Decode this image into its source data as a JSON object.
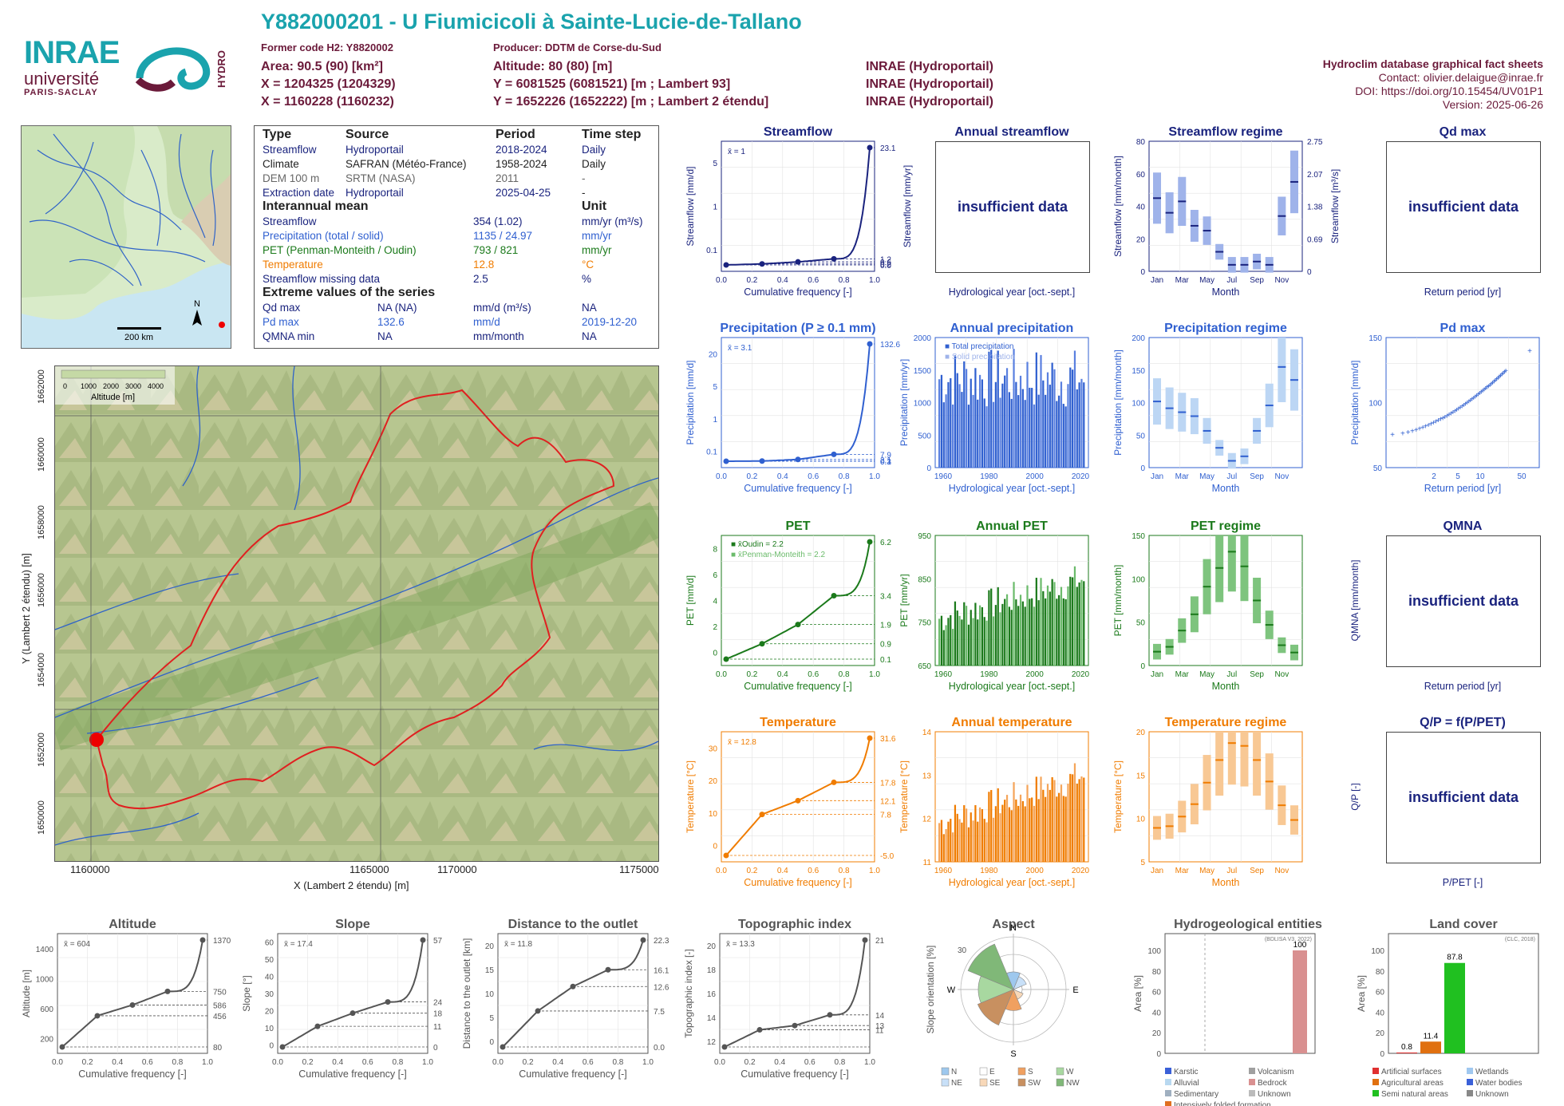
{
  "header": {
    "title": "Y882000201 - U Fiumicicoli à Sainte-Lucie-de-Tallano",
    "former_code": "Former code H2: Y8820002",
    "producer": "Producer: DDTM de Corse-du-Sud",
    "area": "Area: 90.5 (90) [km²]",
    "altitude": "Altitude: 80 (80) [m]",
    "x_l93": "X = 1204325 (1204329)",
    "y_l93": "Y = 6081525 (6081521) [m ; Lambert 93]",
    "x_l2e": "X = 1160228 (1160232)",
    "y_l2e": "Y = 1652226 (1652222) [m ; Lambert 2 étendu]",
    "src1": "INRAE (Hydroportail)",
    "src2": "INRAE (Hydroportail)",
    "src3": "INRAE (Hydroportail)",
    "db_title": "Hydroclim database graphical fact sheets",
    "contact": "Contact: olivier.delaigue@inrae.fr",
    "doi": "DOI: https://doi.org/10.15454/UV01P1",
    "version": "Version: 2025-06-26"
  },
  "logos": {
    "inrae": "INRAE",
    "universite": "université",
    "paris_saclay": "PARIS-SACLAY",
    "hydro": "HYDRO"
  },
  "minimap": {
    "scale": "200 km",
    "north": "N"
  },
  "info_table": {
    "headers": [
      "Type",
      "Source",
      "Period",
      "Time step"
    ],
    "rows": [
      [
        "Streamflow",
        "Hydroportail",
        "2018-2024",
        "Daily"
      ],
      [
        "Climate",
        "SAFRAN (Météo-France)",
        "1958-2024",
        "Daily"
      ],
      [
        "DEM 100 m",
        "SRTM (NASA)",
        "2011",
        "-"
      ],
      [
        "Extraction date",
        "Hydroportail",
        "2025-04-25",
        "-"
      ]
    ],
    "interannual_title": "Interannual mean",
    "unit_title": "Unit",
    "interannual": [
      [
        "Streamflow",
        "354 (1.02)",
        "mm/yr (m³/s)"
      ],
      [
        "Precipitation (total / solid)",
        "1135 / 24.97",
        "mm/yr"
      ],
      [
        "PET (Penman-Monteith / Oudin)",
        "793 / 821",
        "mm/yr"
      ],
      [
        "Temperature",
        "12.8",
        "°C"
      ],
      [
        "Streamflow missing data",
        "2.5",
        "%"
      ]
    ],
    "extreme_title": "Extreme values of the series",
    "extremes": [
      [
        "Qd max",
        "NA (NA)",
        "mm/d (m³/s)",
        "NA"
      ],
      [
        "Pd max",
        "132.6",
        "mm/d",
        "2019-12-20"
      ],
      [
        "QMNA min",
        "NA",
        "mm/month",
        "NA"
      ]
    ]
  },
  "map": {
    "xlabel": "X (Lambert 2 étendu) [m]",
    "ylabel": "Y (Lambert 2 étendu) [m]",
    "xticks": [
      "1160000",
      "1165000",
      "1170000",
      "1175000"
    ],
    "yticks": [
      "1662000",
      "1660000",
      "1658000",
      "1656000",
      "1654000",
      "1652000",
      "1650000"
    ],
    "legend_ticks": [
      "0",
      "1000",
      "2000",
      "3000",
      "4000"
    ],
    "legend_title": "Altitude [m]"
  },
  "panels": {
    "streamflow": {
      "title": "Streamflow",
      "ylabel": "Streamflow [mm/d]",
      "ylabel2": "Streamflow [mm/yr]",
      "xlabel": "Cumulative frequency [-]",
      "mean": "x̄ = 1",
      "yticks": [
        "0.1",
        "1",
        "5"
      ],
      "right_ticks": [
        "23.1",
        "1.2",
        "0.6",
        "0.2",
        "0.0"
      ],
      "xticks": [
        "0.0",
        "0.2",
        "0.4",
        "0.6",
        "0.8",
        "1.0"
      ]
    },
    "annual_streamflow": {
      "title": "Annual streamflow",
      "message": "insufficient data",
      "xlabel": "Hydrological year [oct.-sept.]"
    },
    "streamflow_regime": {
      "title": "Streamflow regime",
      "ylabel": "Streamflow [mm/month]",
      "ylabel2": "Streamflow [m³/s]",
      "xlabel": "Month",
      "yticks": [
        "0",
        "20",
        "40",
        "60",
        "80"
      ],
      "right_ticks": [
        "0",
        "0.69",
        "1.38",
        "2.07",
        "2.75"
      ],
      "months": [
        "Jan",
        "Mar",
        "May",
        "Jul",
        "Sep",
        "Nov"
      ]
    },
    "qd_max": {
      "title": "Qd max",
      "message": "insufficient data",
      "xlabel": "Return period [yr]"
    },
    "precipitation": {
      "title": "Precipitation (P ≥ 0.1 mm)",
      "ylabel": "Precipitation [mm/d]",
      "xlabel": "Cumulative frequency [-]",
      "mean": "x̄ = 3.1",
      "yticks": [
        "0.1",
        "1",
        "5",
        "20"
      ],
      "right_ticks": [
        "132.6",
        "7.9",
        "2.1",
        "0.3",
        "0.1"
      ],
      "xticks": [
        "0.0",
        "0.2",
        "0.4",
        "0.6",
        "0.8",
        "1.0"
      ]
    },
    "annual_precipitation": {
      "title": "Annual precipitation",
      "ylabel": "Precipitation [mm/yr]",
      "xlabel": "Hydrological year [oct.-sept.]",
      "legend": [
        "Total precipitation",
        "Solid precipitation"
      ],
      "yticks": [
        "0",
        "500",
        "1000",
        "1500",
        "2000"
      ],
      "xticks": [
        "1960",
        "1980",
        "2000",
        "2020"
      ]
    },
    "precipitation_regime": {
      "title": "Precipitation regime",
      "ylabel": "Precipitation [mm/month]",
      "xlabel": "Month",
      "yticks": [
        "0",
        "50",
        "100",
        "150",
        "200"
      ],
      "months": [
        "Jan",
        "Mar",
        "May",
        "Jul",
        "Sep",
        "Nov"
      ]
    },
    "pd_max": {
      "title": "Pd max",
      "ylabel": "Precipitation [mm/d]",
      "xlabel": "Return period [yr]",
      "yticks": [
        "50",
        "100",
        "150"
      ],
      "xticks": [
        "2",
        "5",
        "10",
        "50"
      ]
    },
    "pet": {
      "title": "PET",
      "ylabel": "PET [mm/d]",
      "xlabel": "Cumulative frequency [-]",
      "legend": [
        "x̄Oudin = 2.2",
        "x̄Penman-Monteith = 2.2"
      ],
      "yticks": [
        "0",
        "2",
        "4",
        "6",
        "8"
      ],
      "right_ticks": [
        "6.2",
        "3.4",
        "1.9",
        "0.9",
        "0.1"
      ],
      "xticks": [
        "0.0",
        "0.2",
        "0.4",
        "0.6",
        "0.8",
        "1.0"
      ]
    },
    "annual_pet": {
      "title": "Annual PET",
      "ylabel": "PET [mm/yr]",
      "xlabel": "Hydrological year [oct.-sept.]",
      "yticks": [
        "650",
        "750",
        "850",
        "950"
      ],
      "xticks": [
        "1960",
        "1980",
        "2000",
        "2020"
      ]
    },
    "pet_regime": {
      "title": "PET regime",
      "ylabel": "PET [mm/month]",
      "xlabel": "Month",
      "yticks": [
        "0",
        "50",
        "100",
        "150"
      ],
      "months": [
        "Jan",
        "Mar",
        "May",
        "Jul",
        "Sep",
        "Nov"
      ]
    },
    "qmna": {
      "title": "QMNA",
      "ylabel": "QMNA [mm/month]",
      "message": "insufficient data",
      "xlabel": "Return period [yr]"
    },
    "temperature": {
      "title": "Temperature",
      "ylabel": "Temperature [°C]",
      "xlabel": "Cumulative frequency [-]",
      "mean": "x̄ = 12.8",
      "yticks": [
        "0",
        "10",
        "20",
        "30"
      ],
      "right_ticks": [
        "31.6",
        "17.8",
        "12.1",
        "7.8",
        "-5.0"
      ],
      "xticks": [
        "0.0",
        "0.2",
        "0.4",
        "0.6",
        "0.8",
        "1.0"
      ]
    },
    "annual_temperature": {
      "title": "Annual temperature",
      "ylabel": "Temperature [°C]",
      "xlabel": "Hydrological year [oct.-sept.]",
      "yticks": [
        "11",
        "12",
        "13",
        "14"
      ],
      "xticks": [
        "1960",
        "1980",
        "2000",
        "2020"
      ]
    },
    "temperature_regime": {
      "title": "Temperature regime",
      "ylabel": "Temperature [°C]",
      "xlabel": "Month",
      "yticks": [
        "5",
        "10",
        "15",
        "20"
      ],
      "months": [
        "Jan",
        "Mar",
        "May",
        "Jul",
        "Sep",
        "Nov"
      ]
    },
    "qp": {
      "title": "Q/P = f(P/PET)",
      "ylabel": "Q/P [-]",
      "message": "insufficient data",
      "xlabel": "P/PET [-]"
    },
    "altitude": {
      "title": "Altitude",
      "ylabel": "Altitude [m]",
      "xlabel": "Cumulative frequency [-]",
      "mean": "x̄ = 604",
      "yticks": [
        "200",
        "600",
        "1000",
        "1400"
      ],
      "right_ticks": [
        "1370",
        "750",
        "586",
        "456",
        "80"
      ]
    },
    "slope": {
      "title": "Slope",
      "ylabel": "Slope [°]",
      "xlabel": "Cumulative frequency [-]",
      "mean": "x̄ = 17.4",
      "yticks": [
        "0",
        "10",
        "20",
        "30",
        "40",
        "50",
        "60"
      ],
      "right_ticks": [
        "57",
        "24",
        "18",
        "11",
        "0"
      ]
    },
    "distance": {
      "title": "Distance to the outlet",
      "ylabel": "Distance to the outlet [km]",
      "xlabel": "Cumulative frequency [-]",
      "mean": "x̄ = 11.8",
      "yticks": [
        "0",
        "5",
        "10",
        "15",
        "20"
      ],
      "right_ticks": [
        "22.3",
        "16.1",
        "12.6",
        "7.5",
        "0.0"
      ]
    },
    "topo": {
      "title": "Topographic index",
      "ylabel": "Topographic index [-]",
      "xlabel": "Cumulative frequency [-]",
      "mean": "x̄ = 13.3",
      "yticks": [
        "12",
        "14",
        "16",
        "18",
        "20"
      ],
      "right_ticks": [
        "21",
        "14",
        "13",
        "11"
      ]
    },
    "aspect": {
      "title": "Aspect",
      "ylabel": "Slope orientation [%]",
      "directions": [
        "N",
        "E",
        "S",
        "W"
      ],
      "rings": [
        "10",
        "20",
        "30"
      ],
      "legend": [
        "N",
        "E",
        "S",
        "W",
        "NE",
        "SE",
        "SW",
        "NW"
      ]
    },
    "hydrogeo": {
      "title": "Hydrogeological entities",
      "ylabel": "Area [%]",
      "source": "(BDLISA V3, 2022)",
      "value_label": "100",
      "yticks": [
        "0",
        "20",
        "40",
        "60",
        "80",
        "100"
      ],
      "legend": [
        "Karstic",
        "Volcanism",
        "Alluvial",
        "Bedrock",
        "Sedimentary",
        "Unknown",
        "Intensively folded formation"
      ]
    },
    "landcover": {
      "title": "Land cover",
      "ylabel": "Area [%]",
      "source": "(CLC, 2018)",
      "value_labels": [
        "0.8",
        "11.4",
        "87.8"
      ],
      "yticks": [
        "0",
        "20",
        "40",
        "60",
        "80",
        "100"
      ],
      "legend": [
        "Artificial surfaces",
        "Wetlands",
        "Agricultural areas",
        "Water bodies",
        "Semi natural areas",
        "Unknown"
      ]
    }
  },
  "colors": {
    "streamflow": "#1a237e",
    "precipitation": "#3060d0",
    "pet": "#1b7a1b",
    "temperature": "#f07c00",
    "topo": "#555555",
    "brand": "#1aa3ad",
    "brand2": "#6b1a3a"
  },
  "chart_data": [
    {
      "type": "line",
      "title": "Streamflow",
      "x": [
        0,
        0.25,
        0.5,
        0.75,
        1.0
      ],
      "values": [
        0.0,
        0.2,
        0.6,
        1.2,
        23.1
      ]
    },
    {
      "type": "bar",
      "title": "Streamflow regime",
      "categories": [
        "Jan",
        "Feb",
        "Mar",
        "Apr",
        "May",
        "Jun",
        "Jul",
        "Aug",
        "Sep",
        "Oct",
        "Nov",
        "Dec"
      ],
      "values": [
        45,
        36,
        43,
        28,
        25,
        12,
        4,
        4,
        6,
        4,
        34,
        55
      ]
    },
    {
      "type": "line",
      "title": "Precipitation (P ≥ 0.1 mm)",
      "x": [
        0,
        0.25,
        0.5,
        0.75,
        1.0
      ],
      "values": [
        0.1,
        0.3,
        2.1,
        7.9,
        132.6
      ]
    },
    {
      "type": "bar",
      "title": "Annual precipitation",
      "x_range": [
        1959,
        2024
      ],
      "ylim": [
        0,
        2000
      ],
      "mean_total": 1135,
      "mean_solid": 24.97
    },
    {
      "type": "bar",
      "title": "Precipitation regime",
      "categories": [
        "Jan",
        "Feb",
        "Mar",
        "Apr",
        "May",
        "Jun",
        "Jul",
        "Aug",
        "Sep",
        "Oct",
        "Nov",
        "Dec"
      ],
      "values": [
        117,
        105,
        98,
        91,
        65,
        35,
        12,
        20,
        65,
        110,
        178,
        155
      ]
    },
    {
      "type": "scatter",
      "title": "Pd max",
      "values_range": [
        35,
        132.6
      ]
    },
    {
      "type": "line",
      "title": "PET",
      "x": [
        0,
        0.25,
        0.5,
        0.75,
        1.0
      ],
      "values": [
        0.1,
        0.9,
        1.9,
        3.4,
        6.2
      ]
    },
    {
      "type": "bar",
      "title": "Annual PET",
      "x_range": [
        1959,
        2024
      ],
      "ylim": [
        650,
        1000
      ]
    },
    {
      "type": "bar",
      "title": "PET regime",
      "categories": [
        "Jan",
        "Feb",
        "Mar",
        "Apr",
        "May",
        "Jun",
        "Jul",
        "Aug",
        "Sep",
        "Oct",
        "Nov",
        "Dec"
      ],
      "values": [
        17,
        23,
        43,
        63,
        97,
        120,
        140,
        122,
        80,
        50,
        25,
        16
      ]
    },
    {
      "type": "line",
      "title": "Temperature",
      "x": [
        0,
        0.25,
        0.5,
        0.75,
        1.0
      ],
      "values": [
        -5.0,
        7.8,
        12.1,
        17.8,
        31.6
      ]
    },
    {
      "type": "bar",
      "title": "Annual temperature",
      "x_range": [
        1959,
        2024
      ],
      "ylim": [
        10.8,
        14.6
      ]
    },
    {
      "type": "bar",
      "title": "Temperature regime",
      "categories": [
        "Jan",
        "Feb",
        "Mar",
        "Apr",
        "May",
        "Jun",
        "Jul",
        "Aug",
        "Sep",
        "Oct",
        "Nov",
        "Dec"
      ],
      "values": [
        6,
        6.3,
        8,
        10.2,
        14,
        18,
        21,
        20.5,
        18,
        14.2,
        10,
        7.4
      ]
    },
    {
      "type": "line",
      "title": "Altitude",
      "x": [
        0,
        0.25,
        0.5,
        0.75,
        1.0
      ],
      "values": [
        80,
        456,
        586,
        750,
        1370
      ]
    },
    {
      "type": "line",
      "title": "Slope",
      "x": [
        0,
        0.25,
        0.5,
        0.75,
        1.0
      ],
      "values": [
        0,
        11,
        18,
        24,
        57
      ]
    },
    {
      "type": "line",
      "title": "Distance to the outlet",
      "x": [
        0,
        0.25,
        0.5,
        0.75,
        1.0
      ],
      "values": [
        0.0,
        7.5,
        12.6,
        16.1,
        22.3
      ]
    },
    {
      "type": "line",
      "title": "Topographic index",
      "x": [
        0,
        0.25,
        0.5,
        0.75,
        1.0
      ],
      "values": [
        11,
        12.6,
        13,
        14,
        21
      ]
    },
    {
      "type": "bar",
      "title": "Hydrogeological entities",
      "categories": [
        "Bedrock"
      ],
      "values": [
        100
      ]
    },
    {
      "type": "bar",
      "title": "Land cover",
      "categories": [
        "Artificial surfaces",
        "Agricultural areas",
        "Semi natural areas"
      ],
      "values": [
        0.8,
        11.4,
        87.8
      ]
    }
  ]
}
